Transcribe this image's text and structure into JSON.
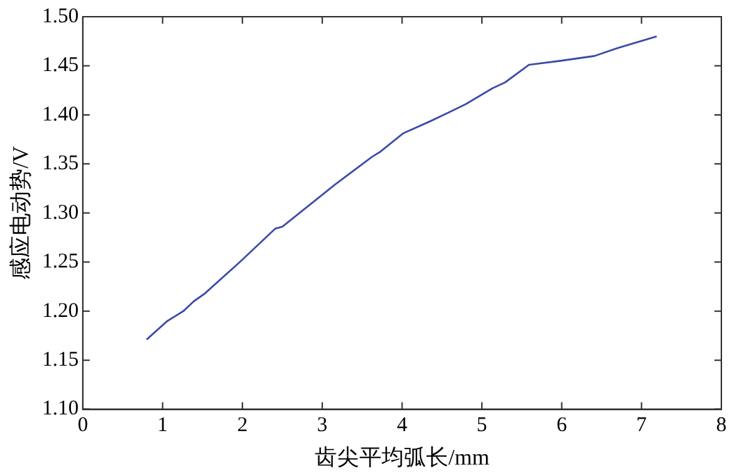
{
  "chart_data": {
    "type": "line",
    "xlabel": "齿尖平均弧长/mm",
    "ylabel": "感应电动势/V",
    "x": [
      0.8,
      1.06,
      1.26,
      1.39,
      1.53,
      1.98,
      2.41,
      2.5,
      3.16,
      3.62,
      3.72,
      4.01,
      4.34,
      4.6,
      4.8,
      5.13,
      5.29,
      5.59,
      5.98,
      6.41,
      6.7,
      7.19
    ],
    "series": [
      {
        "color": "#3a4aa8",
        "values": [
          1.171,
          1.19,
          1.2,
          1.21,
          1.218,
          1.251,
          1.284,
          1.286,
          1.329,
          1.357,
          1.362,
          1.381,
          1.393,
          1.403,
          1.411,
          1.427,
          1.433,
          1.451,
          1.455,
          1.46,
          1.468,
          1.48
        ]
      }
    ],
    "xlim": [
      0,
      8
    ],
    "xticks": [
      0,
      1,
      2,
      3,
      4,
      5,
      6,
      7,
      8
    ],
    "ylim": [
      1.1,
      1.5
    ],
    "yticks": [
      {
        "value": 1.1,
        "label": "1.10"
      },
      {
        "value": 1.15,
        "label": "1.15"
      },
      {
        "value": 1.2,
        "label": "1.20"
      },
      {
        "value": 1.25,
        "label": "1.25"
      },
      {
        "value": 1.3,
        "label": "1.30"
      },
      {
        "value": 1.35,
        "label": "1.35"
      },
      {
        "value": 1.4,
        "label": "1.40"
      },
      {
        "value": 1.45,
        "label": "1.45"
      },
      {
        "value": 1.5,
        "label": "1.50"
      }
    ],
    "grid": false,
    "legend": false,
    "marker": "none",
    "line_style": "solid"
  }
}
